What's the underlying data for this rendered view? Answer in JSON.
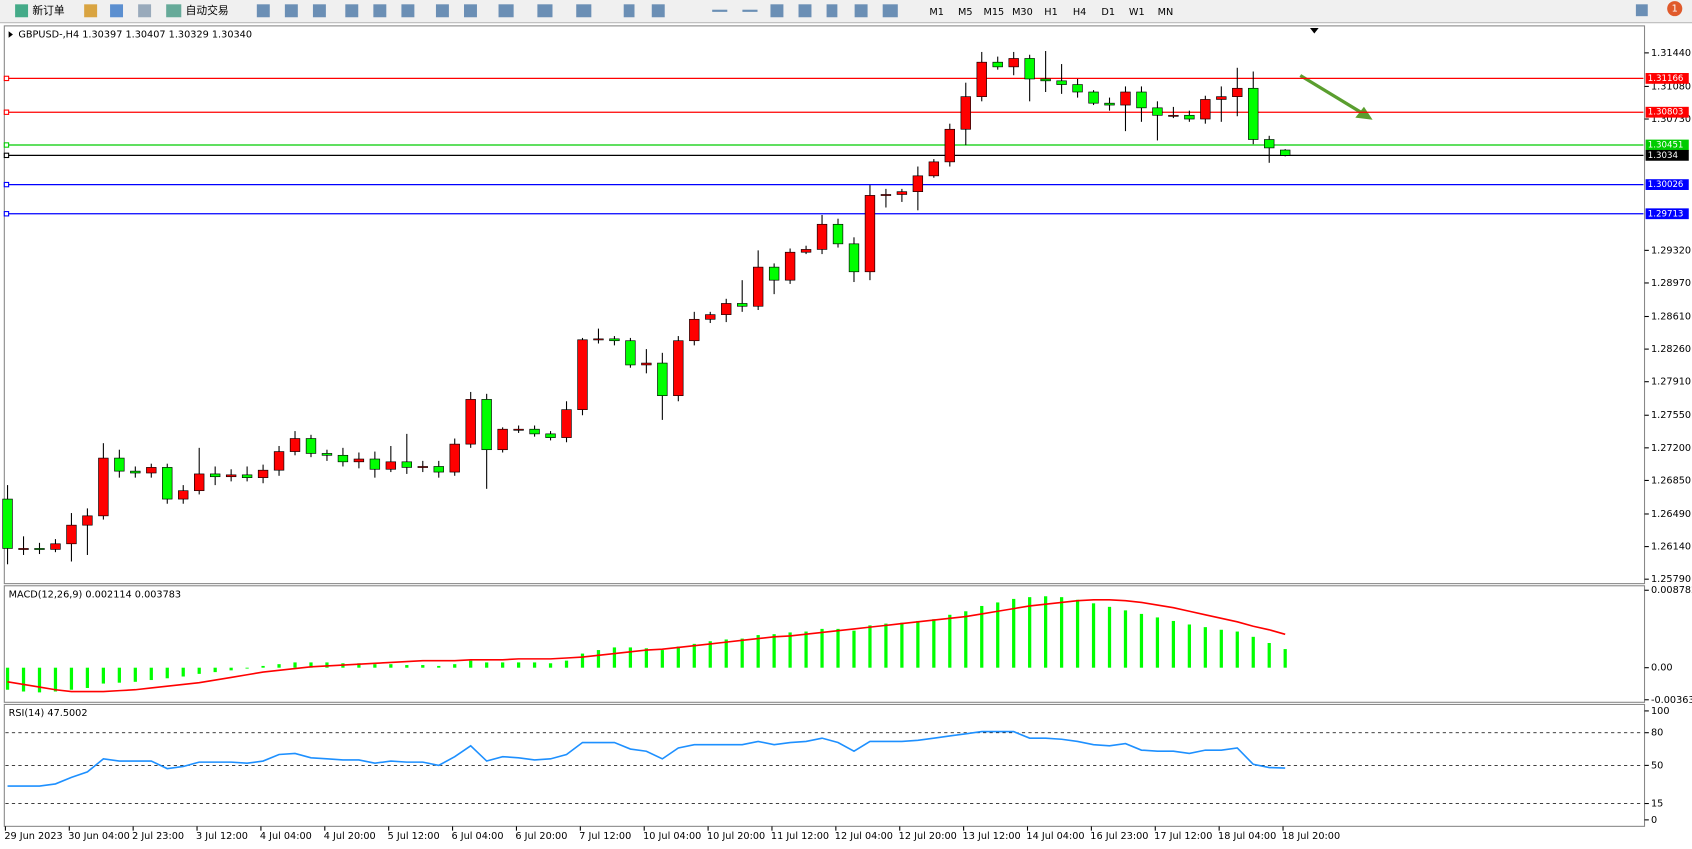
{
  "toolbar": {
    "new_order": "新订单",
    "auto_trading": "自动交易",
    "timeframes": [
      "M1",
      "M5",
      "M15",
      "M30",
      "H1",
      "H4",
      "D1",
      "W1",
      "MN"
    ]
  },
  "notification_count": "1",
  "chart_data": [
    {
      "type": "candlestick",
      "title": "GBPUSD-,H4  1.30397 1.30407 1.30329 1.30340",
      "up_color": "#ff0000",
      "down_color": "#00ff00",
      "categories": [
        "29 Jun 2023",
        null,
        null,
        null,
        "30 Jun 04:00",
        null,
        null,
        null,
        "2 Jul 23:00",
        null,
        null,
        null,
        "3 Jul 12:00",
        null,
        null,
        null,
        "4 Jul 04:00",
        null,
        null,
        null,
        "4 Jul 20:00",
        null,
        null,
        null,
        "5 Jul 12:00",
        null,
        null,
        null,
        "6 Jul 04:00",
        null,
        null,
        null,
        "6 Jul 20:00",
        null,
        null,
        null,
        "7 Jul 12:00",
        null,
        null,
        null,
        "10 Jul 04:00",
        null,
        null,
        null,
        "10 Jul 20:00",
        null,
        null,
        null,
        "11 Jul 12:00",
        null,
        null,
        null,
        "12 Jul 04:00",
        null,
        null,
        null,
        "12 Jul 20:00",
        null,
        null,
        null,
        "13 Jul 12:00",
        null,
        null,
        null,
        "14 Jul 04:00",
        null,
        null,
        null,
        "16 Jul 23:00",
        null,
        null,
        null,
        "17 Jul 12:00",
        null,
        null,
        null,
        "18 Jul 04:00",
        null,
        null,
        null,
        "18 Jul 20:00"
      ],
      "candles": [
        [
          1.2665,
          1.268,
          1.2595,
          1.2612
        ],
        [
          1.2612,
          1.2625,
          1.2605,
          1.2612
        ],
        [
          1.2612,
          1.2618,
          1.2606,
          1.2611
        ],
        [
          1.2611,
          1.2622,
          1.2608,
          1.2617
        ],
        [
          1.2617,
          1.265,
          1.2598,
          1.2637
        ],
        [
          1.2637,
          1.2655,
          1.2605,
          1.2647
        ],
        [
          1.2647,
          1.2725,
          1.2643,
          1.2709
        ],
        [
          1.2709,
          1.2718,
          1.2688,
          1.2695
        ],
        [
          1.2695,
          1.27,
          1.2688,
          1.2693
        ],
        [
          1.2693,
          1.2703,
          1.2688,
          1.2699
        ],
        [
          1.2699,
          1.2703,
          1.266,
          1.2665
        ],
        [
          1.2665,
          1.268,
          1.266,
          1.2674
        ],
        [
          1.2674,
          1.272,
          1.267,
          1.2692
        ],
        [
          1.2692,
          1.27,
          1.268,
          1.2689
        ],
        [
          1.2689,
          1.2697,
          1.2684,
          1.2691
        ],
        [
          1.2691,
          1.27,
          1.2684,
          1.2688
        ],
        [
          1.2688,
          1.2702,
          1.2682,
          1.2696
        ],
        [
          1.2696,
          1.2722,
          1.269,
          1.2716
        ],
        [
          1.2716,
          1.2738,
          1.2712,
          1.273
        ],
        [
          1.273,
          1.2734,
          1.271,
          1.2714
        ],
        [
          1.2714,
          1.2718,
          1.2706,
          1.2712
        ],
        [
          1.2712,
          1.272,
          1.27,
          1.2705
        ],
        [
          1.2705,
          1.2715,
          1.2698,
          1.2708
        ],
        [
          1.2708,
          1.2716,
          1.2688,
          1.2697
        ],
        [
          1.2697,
          1.2722,
          1.2694,
          1.2705
        ],
        [
          1.2705,
          1.2735,
          1.2692,
          1.2699
        ],
        [
          1.2699,
          1.2706,
          1.2694,
          1.27
        ],
        [
          1.27,
          1.2706,
          1.2688,
          1.2694
        ],
        [
          1.2694,
          1.273,
          1.269,
          1.2724
        ],
        [
          1.2724,
          1.278,
          1.272,
          1.2772
        ],
        [
          1.2772,
          1.2778,
          1.2676,
          1.2718
        ],
        [
          1.2718,
          1.2742,
          1.2715,
          1.274
        ],
        [
          1.274,
          1.2744,
          1.2736,
          1.274
        ],
        [
          1.274,
          1.2744,
          1.2732,
          1.2735
        ],
        [
          1.2735,
          1.2738,
          1.2728,
          1.2731
        ],
        [
          1.2731,
          1.277,
          1.2726,
          1.2761
        ],
        [
          1.2761,
          1.2838,
          1.2755,
          1.2836
        ],
        [
          1.2836,
          1.2848,
          1.2832,
          1.2837
        ],
        [
          1.2837,
          1.284,
          1.283,
          1.2835
        ],
        [
          1.2835,
          1.2838,
          1.2806,
          1.2809
        ],
        [
          1.2809,
          1.2826,
          1.28,
          1.2811
        ],
        [
          1.2811,
          1.2822,
          1.275,
          1.2776
        ],
        [
          1.2776,
          1.284,
          1.277,
          1.2835
        ],
        [
          1.2835,
          1.2866,
          1.283,
          1.2858
        ],
        [
          1.2858,
          1.2866,
          1.2854,
          1.2863
        ],
        [
          1.2863,
          1.288,
          1.2855,
          1.2875
        ],
        [
          1.2875,
          1.29,
          1.2866,
          1.2872
        ],
        [
          1.2872,
          1.2932,
          1.2868,
          1.2914
        ],
        [
          1.2914,
          1.2918,
          1.2885,
          1.29
        ],
        [
          1.29,
          1.2934,
          1.2896,
          1.293
        ],
        [
          1.293,
          1.2937,
          1.2928,
          1.2933
        ],
        [
          1.2933,
          1.297,
          1.2928,
          1.296
        ],
        [
          1.296,
          1.2966,
          1.2935,
          1.2939
        ],
        [
          1.2939,
          1.2946,
          1.2898,
          1.2909
        ],
        [
          1.2909,
          1.3002,
          1.29,
          1.2991
        ],
        [
          1.2991,
          1.2998,
          1.2978,
          1.2992
        ],
        [
          1.2992,
          1.2998,
          1.2984,
          1.2995
        ],
        [
          1.2995,
          1.3022,
          1.2975,
          1.3012
        ],
        [
          1.3012,
          1.303,
          1.301,
          1.3027
        ],
        [
          1.3027,
          1.3068,
          1.3022,
          1.3062
        ],
        [
          1.3062,
          1.3112,
          1.3045,
          1.3097
        ],
        [
          1.3097,
          1.3145,
          1.3092,
          1.3134
        ],
        [
          1.3134,
          1.314,
          1.3126,
          1.3129
        ],
        [
          1.3129,
          1.3145,
          1.312,
          1.3138
        ],
        [
          1.3138,
          1.3142,
          1.3092,
          1.3116
        ],
        [
          1.3116,
          1.3146,
          1.3102,
          1.3114
        ],
        [
          1.3114,
          1.3132,
          1.31,
          1.311
        ],
        [
          1.311,
          1.3116,
          1.3096,
          1.3102
        ],
        [
          1.3102,
          1.3104,
          1.3088,
          1.309
        ],
        [
          1.309,
          1.3096,
          1.3082,
          1.3088
        ],
        [
          1.3088,
          1.3108,
          1.306,
          1.3102
        ],
        [
          1.3102,
          1.3108,
          1.307,
          1.3085
        ],
        [
          1.3085,
          1.3092,
          1.305,
          1.3077
        ],
        [
          1.3077,
          1.3086,
          1.3074,
          1.3077
        ],
        [
          1.3077,
          1.3082,
          1.307,
          1.3073
        ],
        [
          1.3073,
          1.3098,
          1.3068,
          1.3094
        ],
        [
          1.3094,
          1.3108,
          1.307,
          1.3097
        ],
        [
          1.3097,
          1.3128,
          1.3076,
          1.3106
        ],
        [
          1.3106,
          1.3124,
          1.3046,
          1.3051
        ],
        [
          1.3051,
          1.3055,
          1.3026,
          1.3042
        ],
        [
          1.30397,
          1.30407,
          1.30329,
          1.3034
        ]
      ],
      "ylim": [
        1.25754,
        1.31695
      ],
      "yticks": [
        {
          "value": 1.3144,
          "label": "1.31440"
        },
        {
          "value": 1.3108,
          "label": "1.31080"
        },
        {
          "value": 1.3073,
          "label": "1.30730"
        },
        {
          "value": 1.2932,
          "label": "1.29320"
        },
        {
          "value": 1.2897,
          "label": "1.28970"
        },
        {
          "value": 1.2861,
          "label": "1.28610"
        },
        {
          "value": 1.2826,
          "label": "1.28260"
        },
        {
          "value": 1.2791,
          "label": "1.27910"
        },
        {
          "value": 1.2755,
          "label": "1.27550"
        },
        {
          "value": 1.272,
          "label": "1.27200"
        },
        {
          "value": 1.2685,
          "label": "1.26850"
        },
        {
          "value": 1.2649,
          "label": "1.26490"
        },
        {
          "value": 1.2614,
          "label": "1.26140"
        },
        {
          "value": 1.2579,
          "label": "1.25790"
        }
      ],
      "levels": [
        {
          "value": 1.31166,
          "color": "#ff0000"
        },
        {
          "value": 1.30803,
          "color": "#ff0000"
        },
        {
          "value": 1.30451,
          "color": "#00cc00"
        },
        {
          "value": 1.3034,
          "color": "#000000"
        },
        {
          "value": 1.30026,
          "color": "#0000ff"
        },
        {
          "value": 1.29713,
          "color": "#0000ff"
        }
      ]
    },
    {
      "type": "macd",
      "title": "MACD(12,26,9) 0.002114 0.003783",
      "ylim": [
        -0.0038,
        0.0088
      ],
      "yticks": [
        0.008782,
        {
          "value": 0,
          "label": "0.00"
        },
        -0.003637
      ],
      "series": [
        {
          "type": "bar",
          "color": "#00ff00",
          "values": [
            -0.0025,
            -0.0027,
            -0.0028,
            -0.0027,
            -0.0025,
            -0.0023,
            -0.0018,
            -0.0017,
            -0.0016,
            -0.0014,
            -0.0012,
            -0.001,
            -0.0007,
            -0.0005,
            -0.0003,
            -0.0001,
            0.0002,
            0.0004,
            0.0006,
            0.0006,
            0.0006,
            0.0005,
            0.0005,
            0.0004,
            0.0004,
            0.0003,
            0.0003,
            0.0002,
            0.0004,
            0.0008,
            0.0006,
            0.0006,
            0.0006,
            0.0006,
            0.0005,
            0.0008,
            0.0016,
            0.002,
            0.0023,
            0.0023,
            0.0022,
            0.002,
            0.0024,
            0.0027,
            0.003,
            0.0032,
            0.0033,
            0.0037,
            0.0038,
            0.004,
            0.0041,
            0.0044,
            0.0044,
            0.0042,
            0.0048,
            0.005,
            0.0051,
            0.0053,
            0.0055,
            0.006,
            0.0064,
            0.007,
            0.0074,
            0.0078,
            0.008,
            0.0081,
            0.008,
            0.0077,
            0.0073,
            0.0069,
            0.0065,
            0.0061,
            0.0057,
            0.0053,
            0.0049,
            0.0046,
            0.0043,
            0.0041,
            0.0035,
            0.0028,
            0.002114
          ]
        },
        {
          "type": "line",
          "color": "#ff0000",
          "values": [
            -0.0016,
            -0.0019,
            -0.0022,
            -0.0025,
            -0.0027,
            -0.0027,
            -0.0027,
            -0.0026,
            -0.0025,
            -0.0023,
            -0.0021,
            -0.0019,
            -0.0017,
            -0.0014,
            -0.0011,
            -0.0008,
            -0.0005,
            -0.0003,
            -0.0001,
            0.0001,
            0.0002,
            0.0003,
            0.0004,
            0.0005,
            0.0006,
            0.0007,
            0.0008,
            0.0008,
            0.0008,
            0.0009,
            0.0009,
            0.0009,
            0.001,
            0.001,
            0.001,
            0.0011,
            0.0012,
            0.0014,
            0.0016,
            0.0018,
            0.002,
            0.0021,
            0.0023,
            0.0025,
            0.0027,
            0.0029,
            0.0031,
            0.0033,
            0.0035,
            0.0036,
            0.0038,
            0.004,
            0.0042,
            0.0044,
            0.0046,
            0.0048,
            0.005,
            0.0052,
            0.0054,
            0.0056,
            0.0058,
            0.0061,
            0.0064,
            0.0067,
            0.007,
            0.0072,
            0.0074,
            0.0076,
            0.0077,
            0.0077,
            0.0076,
            0.0074,
            0.0071,
            0.0068,
            0.0064,
            0.006,
            0.0056,
            0.0052,
            0.0047,
            0.0043,
            0.003783
          ]
        }
      ]
    },
    {
      "type": "line",
      "title": "RSI(14) 47.5002",
      "ylim": [
        0,
        100
      ],
      "yticks": [
        100,
        80,
        50,
        15,
        0
      ],
      "levels": [
        80,
        50,
        15
      ],
      "series": [
        {
          "color": "#1e90ff",
          "values": [
            31,
            31,
            31,
            33,
            39,
            44,
            56,
            54,
            54,
            54,
            47,
            49,
            53,
            53,
            53,
            52,
            54,
            60,
            61,
            57,
            56,
            55,
            55,
            52,
            54,
            53,
            53,
            50,
            58,
            68,
            54,
            58,
            57,
            55,
            56,
            60,
            71,
            71,
            71,
            65,
            63,
            56,
            66,
            69,
            69,
            69,
            69,
            72,
            69,
            71,
            72,
            75,
            71,
            63,
            72,
            72,
            72,
            73,
            75,
            77,
            79,
            81,
            81,
            81,
            75,
            75,
            74,
            72,
            69,
            68,
            70,
            64,
            63,
            63,
            61,
            64,
            64,
            66,
            51,
            48,
            47.5002
          ]
        }
      ]
    }
  ]
}
